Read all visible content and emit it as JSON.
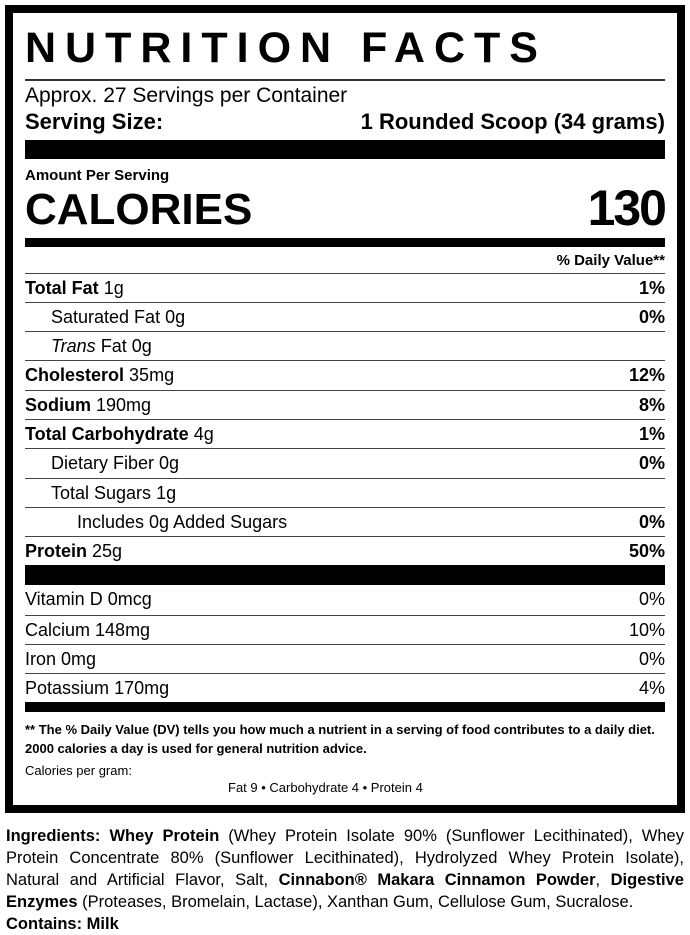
{
  "title": "NUTRITION FACTS",
  "servings_per_container": "Approx. 27 Servings per Container",
  "serving_size": {
    "label": "Serving Size:",
    "value": "1 Rounded Scoop (34 grams)"
  },
  "amount_per_serving": "Amount Per Serving",
  "calories": {
    "label": "CALORIES",
    "value": "130"
  },
  "dv_header": "% Daily Value**",
  "nutrients": [
    {
      "name": "Total Fat",
      "amount": "1g",
      "dv": "1%"
    },
    {
      "name": "Saturated Fat",
      "amount": "0g",
      "dv": "0%"
    },
    {
      "name": "Trans",
      "name2": "Fat",
      "amount": "0g",
      "dv": ""
    },
    {
      "name": "Cholesterol",
      "amount": "35mg",
      "dv": "12%"
    },
    {
      "name": "Sodium",
      "amount": "190mg",
      "dv": "8%"
    },
    {
      "name": "Total Carbohydrate",
      "amount": "4g",
      "dv": "1%"
    },
    {
      "name": "Dietary Fiber",
      "amount": "0g",
      "dv": "0%"
    },
    {
      "name": "Total Sugars",
      "amount": "1g",
      "dv": ""
    },
    {
      "name": "Includes 0g Added Sugars",
      "amount": "",
      "dv": "0%"
    },
    {
      "name": "Protein",
      "amount": "25g",
      "dv": "50%"
    }
  ],
  "vitamins": [
    {
      "name": "Vitamin D",
      "amount": "0mcg",
      "dv": "0%"
    },
    {
      "name": "Calcium",
      "amount": "148mg",
      "dv": "10%"
    },
    {
      "name": "Iron",
      "amount": "0mg",
      "dv": "0%"
    },
    {
      "name": "Potassium",
      "amount": "170mg",
      "dv": "4%"
    }
  ],
  "footnote": "** The % Daily Value (DV) tells you how much a nutrient in a serving of food contributes to a daily diet. 2000 calories a day is used for general nutrition advice.",
  "calories_per_gram": {
    "label": "Calories per gram:",
    "values": "Fat 9 • Carbohydrate 4 • Protein 4"
  },
  "ingredients": {
    "label": "Ingredients:",
    "p1_bold": "Whey Protein",
    "p1": " (Whey Protein Isolate 90% (Sunflower Lecithinated), Whey Protein Concentrate 80% (Sunflower Lecithinated), Hydrolyzed Whey Protein Isolate), Natural and Artificial Flavor, Salt, ",
    "p2_bold": "Cinnabon® Makara Cinnamon Powder",
    "p2": ",  ",
    "p3_bold": "Digestive Enzymes",
    "p3": " (Proteases, Bromelain, Lactase), Xanthan Gum, Cellulose Gum, Sucralose.",
    "contains": "Contains: Milk"
  }
}
